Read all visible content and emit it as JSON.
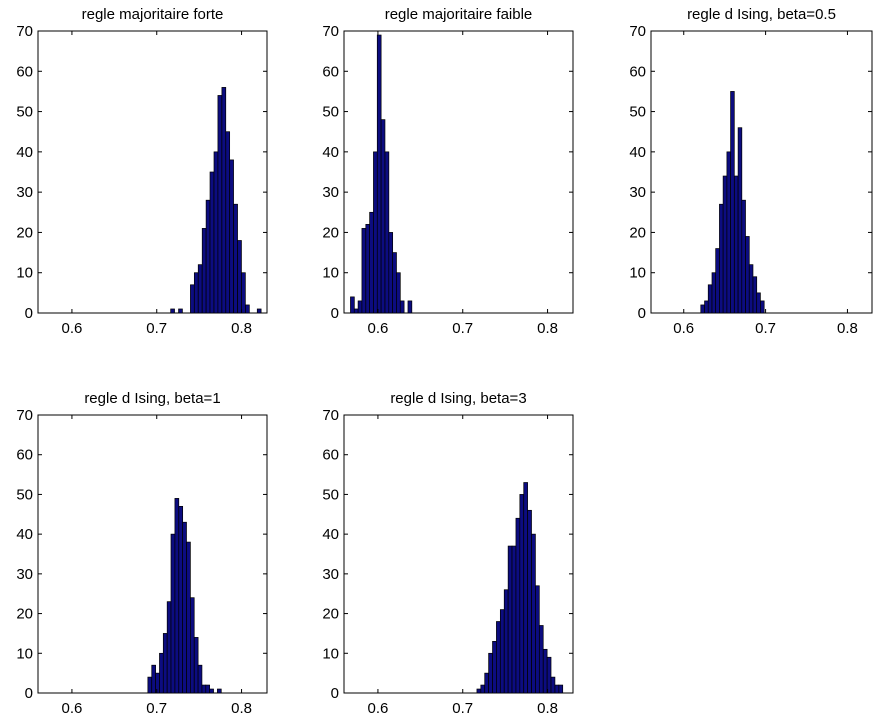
{
  "figure": {
    "background": "#ffffff",
    "bar_color": "#0c0c80",
    "edge_color": "#000000"
  },
  "chart_data": [
    {
      "type": "bar",
      "title": "regle majoritaire forte",
      "xlim": [
        0.56,
        0.83
      ],
      "ylim": [
        0,
        70
      ],
      "xticks": [
        0.6,
        0.7,
        0.8
      ],
      "xtick_labels": [
        "0.6",
        "0.7",
        "0.8"
      ],
      "yticks": [
        0,
        10,
        20,
        30,
        40,
        50,
        60,
        70
      ],
      "ytick_labels": [
        "0",
        "10",
        "20",
        "30",
        "40",
        "50",
        "60",
        "70"
      ],
      "bin_width": 0.00455,
      "bins": [
        {
          "x": 0.7187,
          "y": 1
        },
        {
          "x": 0.728,
          "y": 1
        },
        {
          "x": 0.742,
          "y": 7
        },
        {
          "x": 0.7466,
          "y": 10
        },
        {
          "x": 0.7512,
          "y": 12
        },
        {
          "x": 0.7559,
          "y": 21
        },
        {
          "x": 0.7605,
          "y": 28
        },
        {
          "x": 0.7651,
          "y": 35
        },
        {
          "x": 0.7698,
          "y": 40
        },
        {
          "x": 0.7744,
          "y": 54
        },
        {
          "x": 0.7791,
          "y": 56
        },
        {
          "x": 0.7837,
          "y": 45
        },
        {
          "x": 0.7883,
          "y": 38
        },
        {
          "x": 0.793,
          "y": 27
        },
        {
          "x": 0.7976,
          "y": 18
        },
        {
          "x": 0.8022,
          "y": 10
        },
        {
          "x": 0.8069,
          "y": 2
        },
        {
          "x": 0.8208,
          "y": 1
        }
      ]
    },
    {
      "type": "bar",
      "title": "regle majoritaire faible",
      "xlim": [
        0.56,
        0.83
      ],
      "ylim": [
        0,
        70
      ],
      "xticks": [
        0.6,
        0.7,
        0.8
      ],
      "xtick_labels": [
        "0.6",
        "0.7",
        "0.8"
      ],
      "yticks": [
        0,
        10,
        20,
        30,
        40,
        50,
        60,
        70
      ],
      "ytick_labels": [
        "0",
        "10",
        "20",
        "30",
        "40",
        "50",
        "60",
        "70"
      ],
      "bin_width": 0.00455,
      "bins": [
        {
          "x": 0.5699,
          "y": 4
        },
        {
          "x": 0.5744,
          "y": 1
        },
        {
          "x": 0.5789,
          "y": 3
        },
        {
          "x": 0.5834,
          "y": 21
        },
        {
          "x": 0.588,
          "y": 22
        },
        {
          "x": 0.5925,
          "y": 25
        },
        {
          "x": 0.597,
          "y": 40
        },
        {
          "x": 0.6015,
          "y": 69
        },
        {
          "x": 0.606,
          "y": 48
        },
        {
          "x": 0.6106,
          "y": 40
        },
        {
          "x": 0.6151,
          "y": 20
        },
        {
          "x": 0.6196,
          "y": 15
        },
        {
          "x": 0.6241,
          "y": 10
        },
        {
          "x": 0.6286,
          "y": 3
        },
        {
          "x": 0.6377,
          "y": 3
        }
      ]
    },
    {
      "type": "bar",
      "title": "regle d Ising, beta=0.5",
      "xlim": [
        0.56,
        0.83
      ],
      "ylim": [
        0,
        70
      ],
      "xticks": [
        0.6,
        0.7,
        0.8
      ],
      "xtick_labels": [
        "0.6",
        "0.7",
        "0.8"
      ],
      "yticks": [
        0,
        10,
        20,
        30,
        40,
        50,
        60,
        70
      ],
      "ytick_labels": [
        "0",
        "10",
        "20",
        "30",
        "40",
        "50",
        "60",
        "70"
      ],
      "bin_width": 0.00455,
      "bins": [
        {
          "x": 0.6231,
          "y": 2
        },
        {
          "x": 0.6277,
          "y": 3
        },
        {
          "x": 0.6322,
          "y": 7
        },
        {
          "x": 0.6368,
          "y": 10
        },
        {
          "x": 0.6413,
          "y": 16
        },
        {
          "x": 0.6459,
          "y": 27
        },
        {
          "x": 0.6504,
          "y": 34
        },
        {
          "x": 0.655,
          "y": 40
        },
        {
          "x": 0.6595,
          "y": 55
        },
        {
          "x": 0.6641,
          "y": 34
        },
        {
          "x": 0.6687,
          "y": 46
        },
        {
          "x": 0.6732,
          "y": 28
        },
        {
          "x": 0.6778,
          "y": 19
        },
        {
          "x": 0.6823,
          "y": 12
        },
        {
          "x": 0.6869,
          "y": 9
        },
        {
          "x": 0.6914,
          "y": 5
        },
        {
          "x": 0.696,
          "y": 3
        }
      ]
    },
    {
      "type": "bar",
      "title": "regle d Ising, beta=1",
      "xlim": [
        0.56,
        0.83
      ],
      "ylim": [
        0,
        70
      ],
      "xticks": [
        0.6,
        0.7,
        0.8
      ],
      "xtick_labels": [
        "0.6",
        "0.7",
        "0.8"
      ],
      "yticks": [
        0,
        10,
        20,
        30,
        40,
        50,
        60,
        70
      ],
      "ytick_labels": [
        "0",
        "10",
        "20",
        "30",
        "40",
        "50",
        "60",
        "70"
      ],
      "bin_width": 0.00455,
      "bins": [
        {
          "x": 0.6918,
          "y": 4
        },
        {
          "x": 0.6964,
          "y": 7
        },
        {
          "x": 0.7009,
          "y": 5
        },
        {
          "x": 0.7055,
          "y": 10
        },
        {
          "x": 0.71,
          "y": 15
        },
        {
          "x": 0.7146,
          "y": 23
        },
        {
          "x": 0.7191,
          "y": 40
        },
        {
          "x": 0.7237,
          "y": 49
        },
        {
          "x": 0.7283,
          "y": 47
        },
        {
          "x": 0.7328,
          "y": 43
        },
        {
          "x": 0.7374,
          "y": 38
        },
        {
          "x": 0.7419,
          "y": 24
        },
        {
          "x": 0.7465,
          "y": 14
        },
        {
          "x": 0.751,
          "y": 7
        },
        {
          "x": 0.7556,
          "y": 2
        },
        {
          "x": 0.7601,
          "y": 2
        },
        {
          "x": 0.7647,
          "y": 1
        },
        {
          "x": 0.7738,
          "y": 1
        }
      ]
    },
    {
      "type": "bar",
      "title": "regle d Ising, beta=3",
      "xlim": [
        0.56,
        0.83
      ],
      "ylim": [
        0,
        70
      ],
      "xticks": [
        0.6,
        0.7,
        0.8
      ],
      "xtick_labels": [
        "0.6",
        "0.7",
        "0.8"
      ],
      "yticks": [
        0,
        10,
        20,
        30,
        40,
        50,
        60,
        70
      ],
      "ytick_labels": [
        "0",
        "10",
        "20",
        "30",
        "40",
        "50",
        "60",
        "70"
      ],
      "bin_width": 0.00455,
      "bins": [
        {
          "x": 0.719,
          "y": 1
        },
        {
          "x": 0.7236,
          "y": 2
        },
        {
          "x": 0.7282,
          "y": 5
        },
        {
          "x": 0.7328,
          "y": 10
        },
        {
          "x": 0.7374,
          "y": 13
        },
        {
          "x": 0.742,
          "y": 18
        },
        {
          "x": 0.7466,
          "y": 21
        },
        {
          "x": 0.7512,
          "y": 26
        },
        {
          "x": 0.7558,
          "y": 37
        },
        {
          "x": 0.7604,
          "y": 37
        },
        {
          "x": 0.765,
          "y": 44
        },
        {
          "x": 0.7696,
          "y": 50
        },
        {
          "x": 0.7742,
          "y": 53
        },
        {
          "x": 0.7788,
          "y": 46
        },
        {
          "x": 0.7834,
          "y": 40
        },
        {
          "x": 0.788,
          "y": 27
        },
        {
          "x": 0.7926,
          "y": 17
        },
        {
          "x": 0.7972,
          "y": 11
        },
        {
          "x": 0.8018,
          "y": 9
        },
        {
          "x": 0.8064,
          "y": 4
        },
        {
          "x": 0.811,
          "y": 2
        },
        {
          "x": 0.8156,
          "y": 2
        }
      ]
    }
  ]
}
